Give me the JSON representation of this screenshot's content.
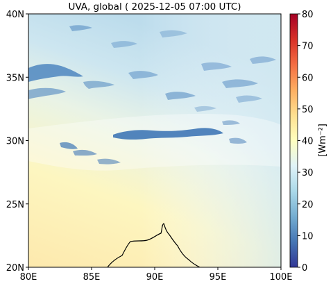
{
  "title": "UVA, global ( 2025-12-05 07:00 UTC)",
  "map": {
    "lon_range": [
      80,
      100
    ],
    "lat_range": [
      20,
      40
    ],
    "x_ticks": [
      {
        "value": 80,
        "label": "80E"
      },
      {
        "value": 85,
        "label": "85E"
      },
      {
        "value": 90,
        "label": "90E"
      },
      {
        "value": 95,
        "label": "95E"
      },
      {
        "value": 100,
        "label": "100E"
      }
    ],
    "y_ticks": [
      {
        "value": 20,
        "label": "20N"
      },
      {
        "value": 25,
        "label": "25N"
      },
      {
        "value": 30,
        "label": "30N"
      },
      {
        "value": 35,
        "label": "35N"
      },
      {
        "value": 40,
        "label": "40N"
      }
    ]
  },
  "colorbar": {
    "label": "[Wm⁻²]",
    "range": [
      0,
      80
    ],
    "ticks": [
      {
        "value": 0,
        "label": "0"
      },
      {
        "value": 10,
        "label": "10"
      },
      {
        "value": 20,
        "label": "20"
      },
      {
        "value": 30,
        "label": "30"
      },
      {
        "value": 40,
        "label": "40"
      },
      {
        "value": 50,
        "label": "50"
      },
      {
        "value": 60,
        "label": "60"
      },
      {
        "value": 70,
        "label": "70"
      },
      {
        "value": 80,
        "label": "80"
      }
    ],
    "colormap": [
      "#313695",
      "#4575b4",
      "#74add1",
      "#abd9e9",
      "#e0f3f8",
      "#ffffbf",
      "#fee090",
      "#fdae61",
      "#f46d43",
      "#d73027",
      "#a50026"
    ]
  }
}
